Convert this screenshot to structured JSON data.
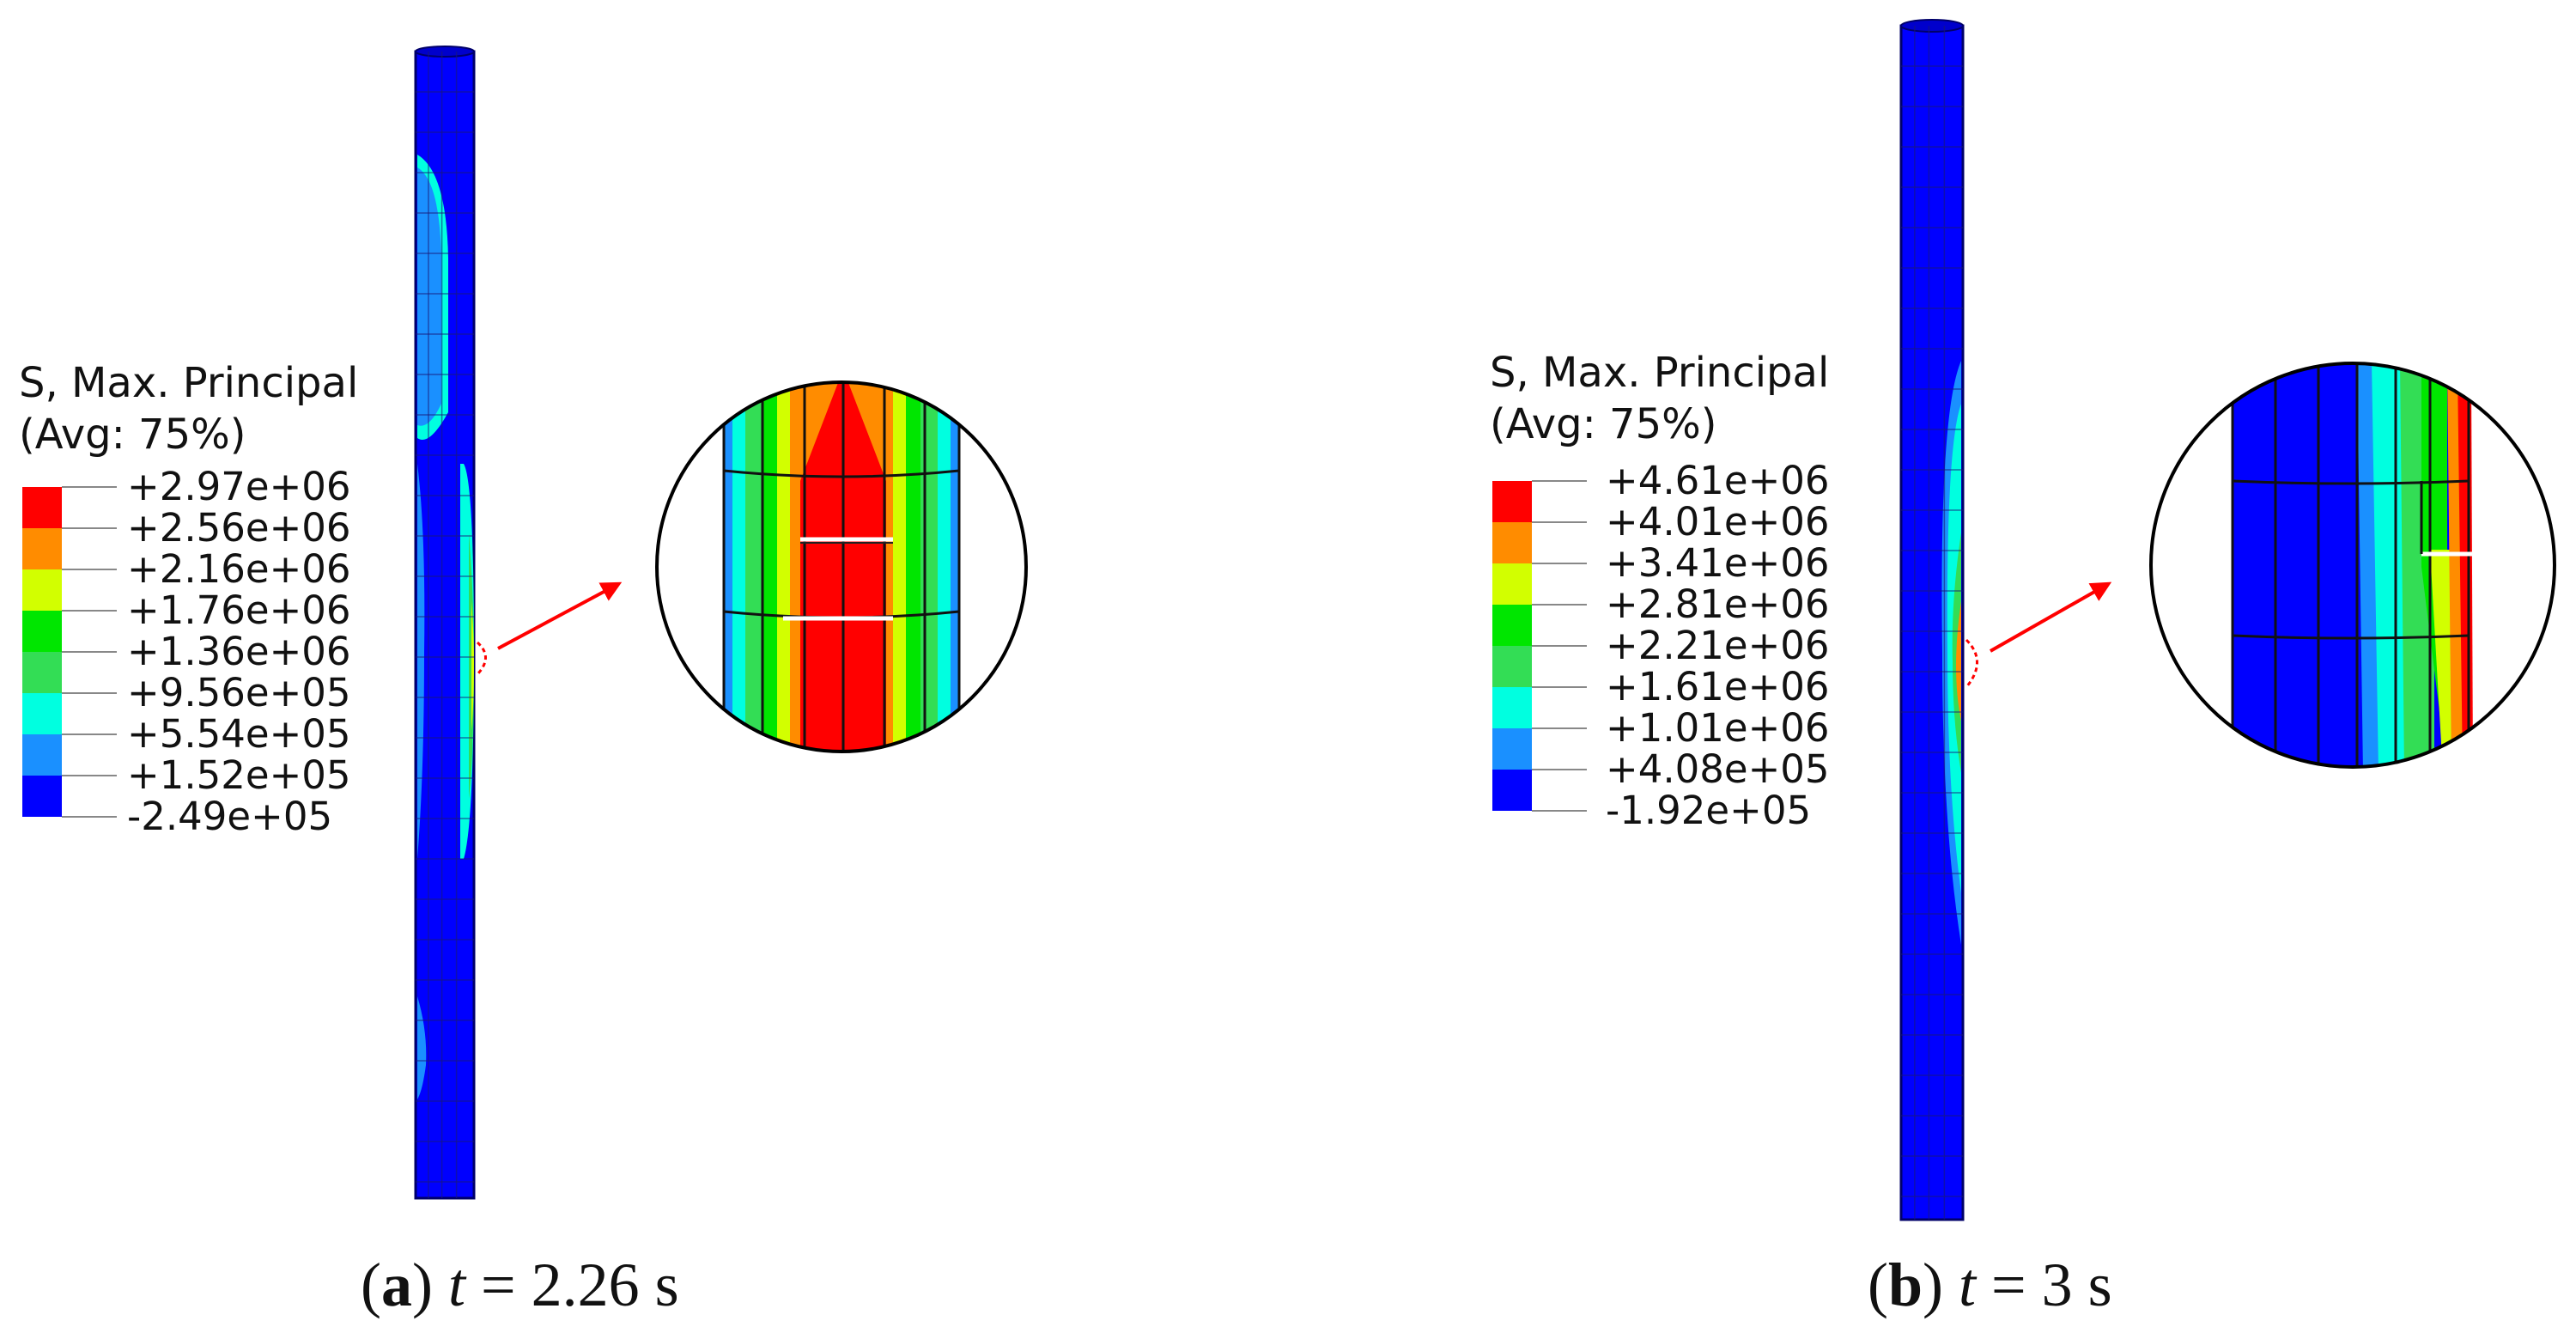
{
  "panels": [
    {
      "id": "a",
      "legend": {
        "title_line1": "S, Max. Principal",
        "title_line2": "(Avg: 75%)",
        "labels": [
          "+2.97e+06",
          "+2.56e+06",
          "+2.16e+06",
          "+1.76e+06",
          "+1.36e+06",
          "+9.56e+05",
          "+5.54e+05",
          "+1.52e+05",
          "-2.49e+05"
        ]
      },
      "caption": {
        "letter": "a",
        "variable": "t",
        "rest": " = 2.26 s"
      }
    },
    {
      "id": "b",
      "legend": {
        "title_line1": "S, Max. Principal",
        "title_line2": "(Avg: 75%)",
        "labels": [
          "+4.61e+06",
          "+4.01e+06",
          "+3.41e+06",
          "+2.81e+06",
          "+2.21e+06",
          "+1.61e+06",
          "+1.01e+06",
          "+4.08e+05",
          "-1.92e+05"
        ]
      },
      "caption": {
        "letter": "b",
        "variable": "t",
        "rest": " = 3 s"
      }
    }
  ],
  "colors": {
    "band_colors": [
      "#ff0000",
      "#ff8c00",
      "#d2ff00",
      "#00e600",
      "#33dd55",
      "#00ffe0",
      "#1a90ff",
      "#0000ff"
    ],
    "arrow": "#ff0000",
    "mesh_lines": "#1a1a7a"
  }
}
